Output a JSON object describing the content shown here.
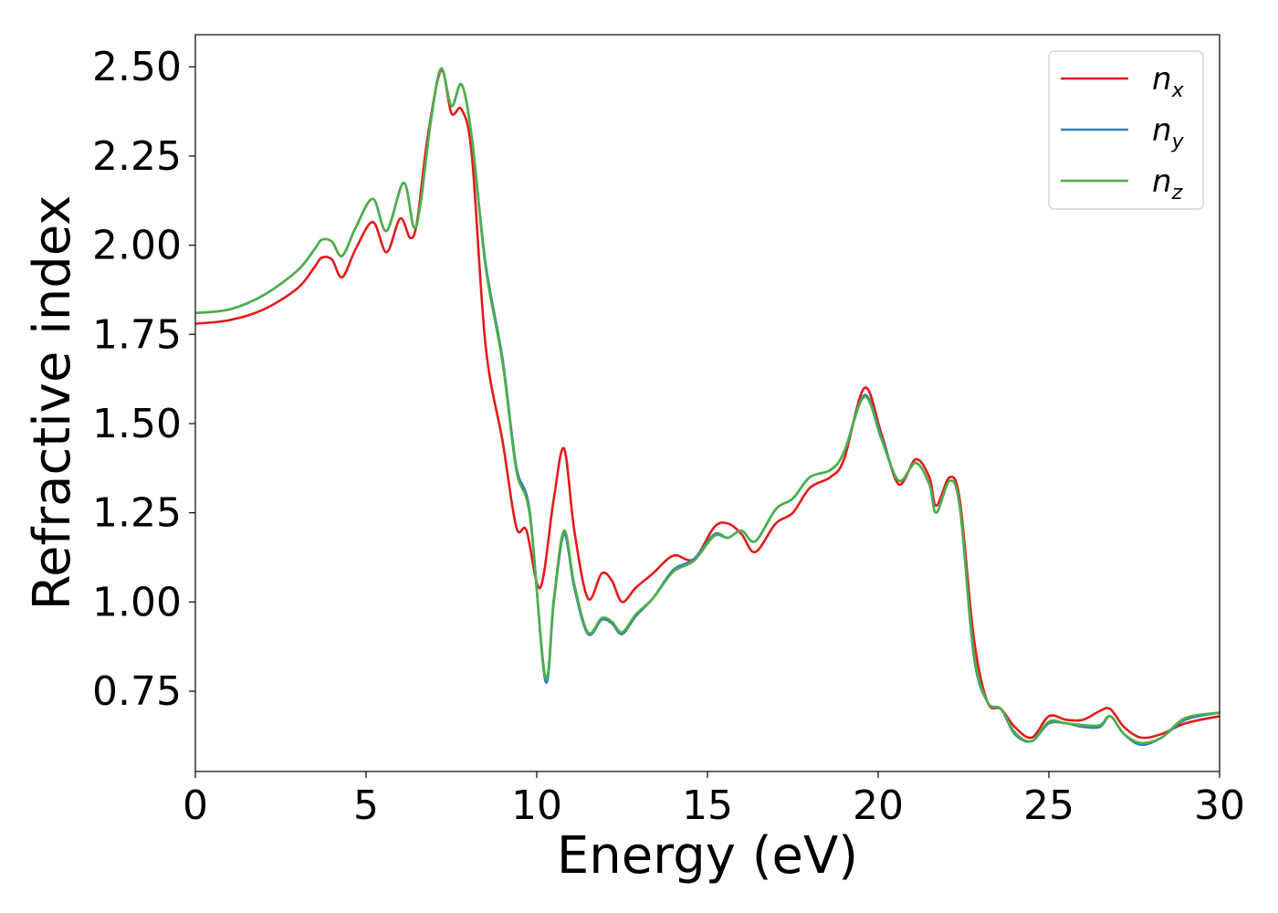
{
  "chart_data": {
    "type": "line",
    "xlabel": "Energy (eV)",
    "ylabel": "Refractive index",
    "xlim": [
      0,
      30
    ],
    "ylim": [
      0.525,
      2.59
    ],
    "xticks": [
      0,
      5,
      10,
      15,
      20,
      25,
      30
    ],
    "xtick_labels": [
      "0",
      "5",
      "10",
      "15",
      "20",
      "25",
      "30"
    ],
    "yticks": [
      0.75,
      1.0,
      1.25,
      1.5,
      1.75,
      2.0,
      2.25,
      2.5
    ],
    "ytick_labels": [
      "0.75",
      "1.00",
      "1.25",
      "1.50",
      "1.75",
      "2.00",
      "2.25",
      "2.50"
    ],
    "grid": false,
    "legend_position": "top-right",
    "series": [
      {
        "name": "n",
        "subscript": "x",
        "color": "#e41a1c",
        "x": [
          0,
          1,
          2,
          3,
          3.5,
          3.7,
          4.0,
          4.3,
          4.7,
          5.2,
          5.6,
          6.0,
          6.3,
          6.5,
          6.8,
          7.2,
          7.5,
          7.8,
          8.1,
          8.5,
          9.0,
          9.4,
          9.7,
          10.1,
          10.5,
          10.8,
          11.1,
          11.5,
          11.9,
          12.2,
          12.5,
          12.9,
          13.4,
          14.0,
          14.6,
          15.2,
          15.6,
          16.0,
          16.4,
          17.0,
          17.5,
          18.0,
          18.6,
          19.0,
          19.6,
          20.1,
          20.6,
          21.1,
          21.5,
          21.7,
          22.1,
          22.4,
          22.8,
          23.2,
          23.6,
          24.0,
          24.5,
          25.0,
          25.5,
          26.0,
          26.5,
          26.8,
          27.2,
          27.7,
          28.3,
          29.0,
          30.0
        ],
        "y": [
          1.78,
          1.79,
          1.82,
          1.88,
          1.94,
          1.965,
          1.96,
          1.91,
          1.99,
          2.065,
          1.98,
          2.075,
          2.02,
          2.07,
          2.3,
          2.49,
          2.37,
          2.38,
          2.25,
          1.72,
          1.45,
          1.21,
          1.2,
          1.04,
          1.29,
          1.43,
          1.2,
          1.01,
          1.08,
          1.06,
          1.0,
          1.04,
          1.08,
          1.13,
          1.12,
          1.21,
          1.22,
          1.19,
          1.14,
          1.22,
          1.25,
          1.32,
          1.35,
          1.4,
          1.6,
          1.47,
          1.33,
          1.4,
          1.35,
          1.27,
          1.35,
          1.28,
          0.9,
          0.72,
          0.7,
          0.65,
          0.62,
          0.68,
          0.67,
          0.67,
          0.695,
          0.7,
          0.65,
          0.62,
          0.63,
          0.66,
          0.68
        ]
      },
      {
        "name": "n",
        "subscript": "y",
        "color": "#377eb8",
        "x": [
          0,
          1,
          2,
          3,
          3.5,
          3.7,
          4.0,
          4.3,
          4.7,
          5.2,
          5.6,
          6.1,
          6.4,
          6.6,
          6.9,
          7.2,
          7.5,
          7.8,
          8.1,
          8.5,
          9.0,
          9.4,
          9.8,
          10.25,
          10.5,
          10.8,
          11.1,
          11.5,
          11.9,
          12.2,
          12.5,
          12.9,
          13.4,
          14.0,
          14.6,
          15.2,
          15.6,
          16.0,
          16.4,
          17.0,
          17.5,
          18.0,
          18.6,
          19.0,
          19.6,
          20.1,
          20.6,
          21.1,
          21.5,
          21.7,
          22.1,
          22.4,
          22.8,
          23.2,
          23.6,
          24.0,
          24.5,
          25.0,
          25.5,
          26.0,
          26.5,
          26.8,
          27.2,
          27.7,
          28.3,
          29.0,
          30.0
        ],
        "y": [
          1.81,
          1.82,
          1.86,
          1.93,
          1.99,
          2.015,
          2.01,
          1.97,
          2.05,
          2.13,
          2.04,
          2.175,
          2.05,
          2.12,
          2.35,
          2.495,
          2.39,
          2.45,
          2.3,
          1.95,
          1.68,
          1.38,
          1.25,
          0.78,
          1.0,
          1.19,
          1.04,
          0.91,
          0.95,
          0.94,
          0.91,
          0.96,
          1.01,
          1.09,
          1.12,
          1.19,
          1.18,
          1.2,
          1.17,
          1.26,
          1.29,
          1.35,
          1.37,
          1.42,
          1.58,
          1.46,
          1.34,
          1.39,
          1.33,
          1.25,
          1.34,
          1.26,
          0.85,
          0.72,
          0.7,
          0.63,
          0.61,
          0.66,
          0.66,
          0.65,
          0.65,
          0.68,
          0.63,
          0.6,
          0.62,
          0.67,
          0.69
        ]
      },
      {
        "name": "n",
        "subscript": "z",
        "color": "#4daf4a",
        "x": [
          0,
          1,
          2,
          3,
          3.5,
          3.7,
          4.0,
          4.3,
          4.7,
          5.2,
          5.6,
          6.1,
          6.4,
          6.6,
          6.9,
          7.2,
          7.5,
          7.8,
          8.1,
          8.5,
          9.0,
          9.4,
          9.8,
          10.25,
          10.5,
          10.8,
          11.1,
          11.5,
          11.9,
          12.2,
          12.5,
          12.9,
          13.4,
          14.0,
          14.6,
          15.2,
          15.6,
          16.0,
          16.4,
          17.0,
          17.5,
          18.0,
          18.6,
          19.0,
          19.6,
          20.1,
          20.6,
          21.1,
          21.5,
          21.7,
          22.1,
          22.4,
          22.8,
          23.2,
          23.6,
          24.0,
          24.5,
          25.0,
          25.5,
          26.0,
          26.5,
          26.8,
          27.2,
          27.7,
          28.3,
          29.0,
          30.0
        ],
        "y": [
          1.81,
          1.82,
          1.86,
          1.93,
          1.99,
          2.015,
          2.01,
          1.97,
          2.05,
          2.13,
          2.04,
          2.175,
          2.05,
          2.12,
          2.35,
          2.495,
          2.39,
          2.45,
          2.3,
          1.94,
          1.67,
          1.37,
          1.24,
          0.79,
          1.01,
          1.2,
          1.05,
          0.915,
          0.955,
          0.945,
          0.915,
          0.965,
          1.01,
          1.085,
          1.115,
          1.185,
          1.18,
          1.2,
          1.17,
          1.26,
          1.29,
          1.35,
          1.37,
          1.42,
          1.575,
          1.455,
          1.34,
          1.39,
          1.33,
          1.25,
          1.34,
          1.26,
          0.86,
          0.72,
          0.7,
          0.635,
          0.61,
          0.665,
          0.66,
          0.655,
          0.655,
          0.68,
          0.63,
          0.605,
          0.62,
          0.675,
          0.69
        ]
      }
    ]
  }
}
